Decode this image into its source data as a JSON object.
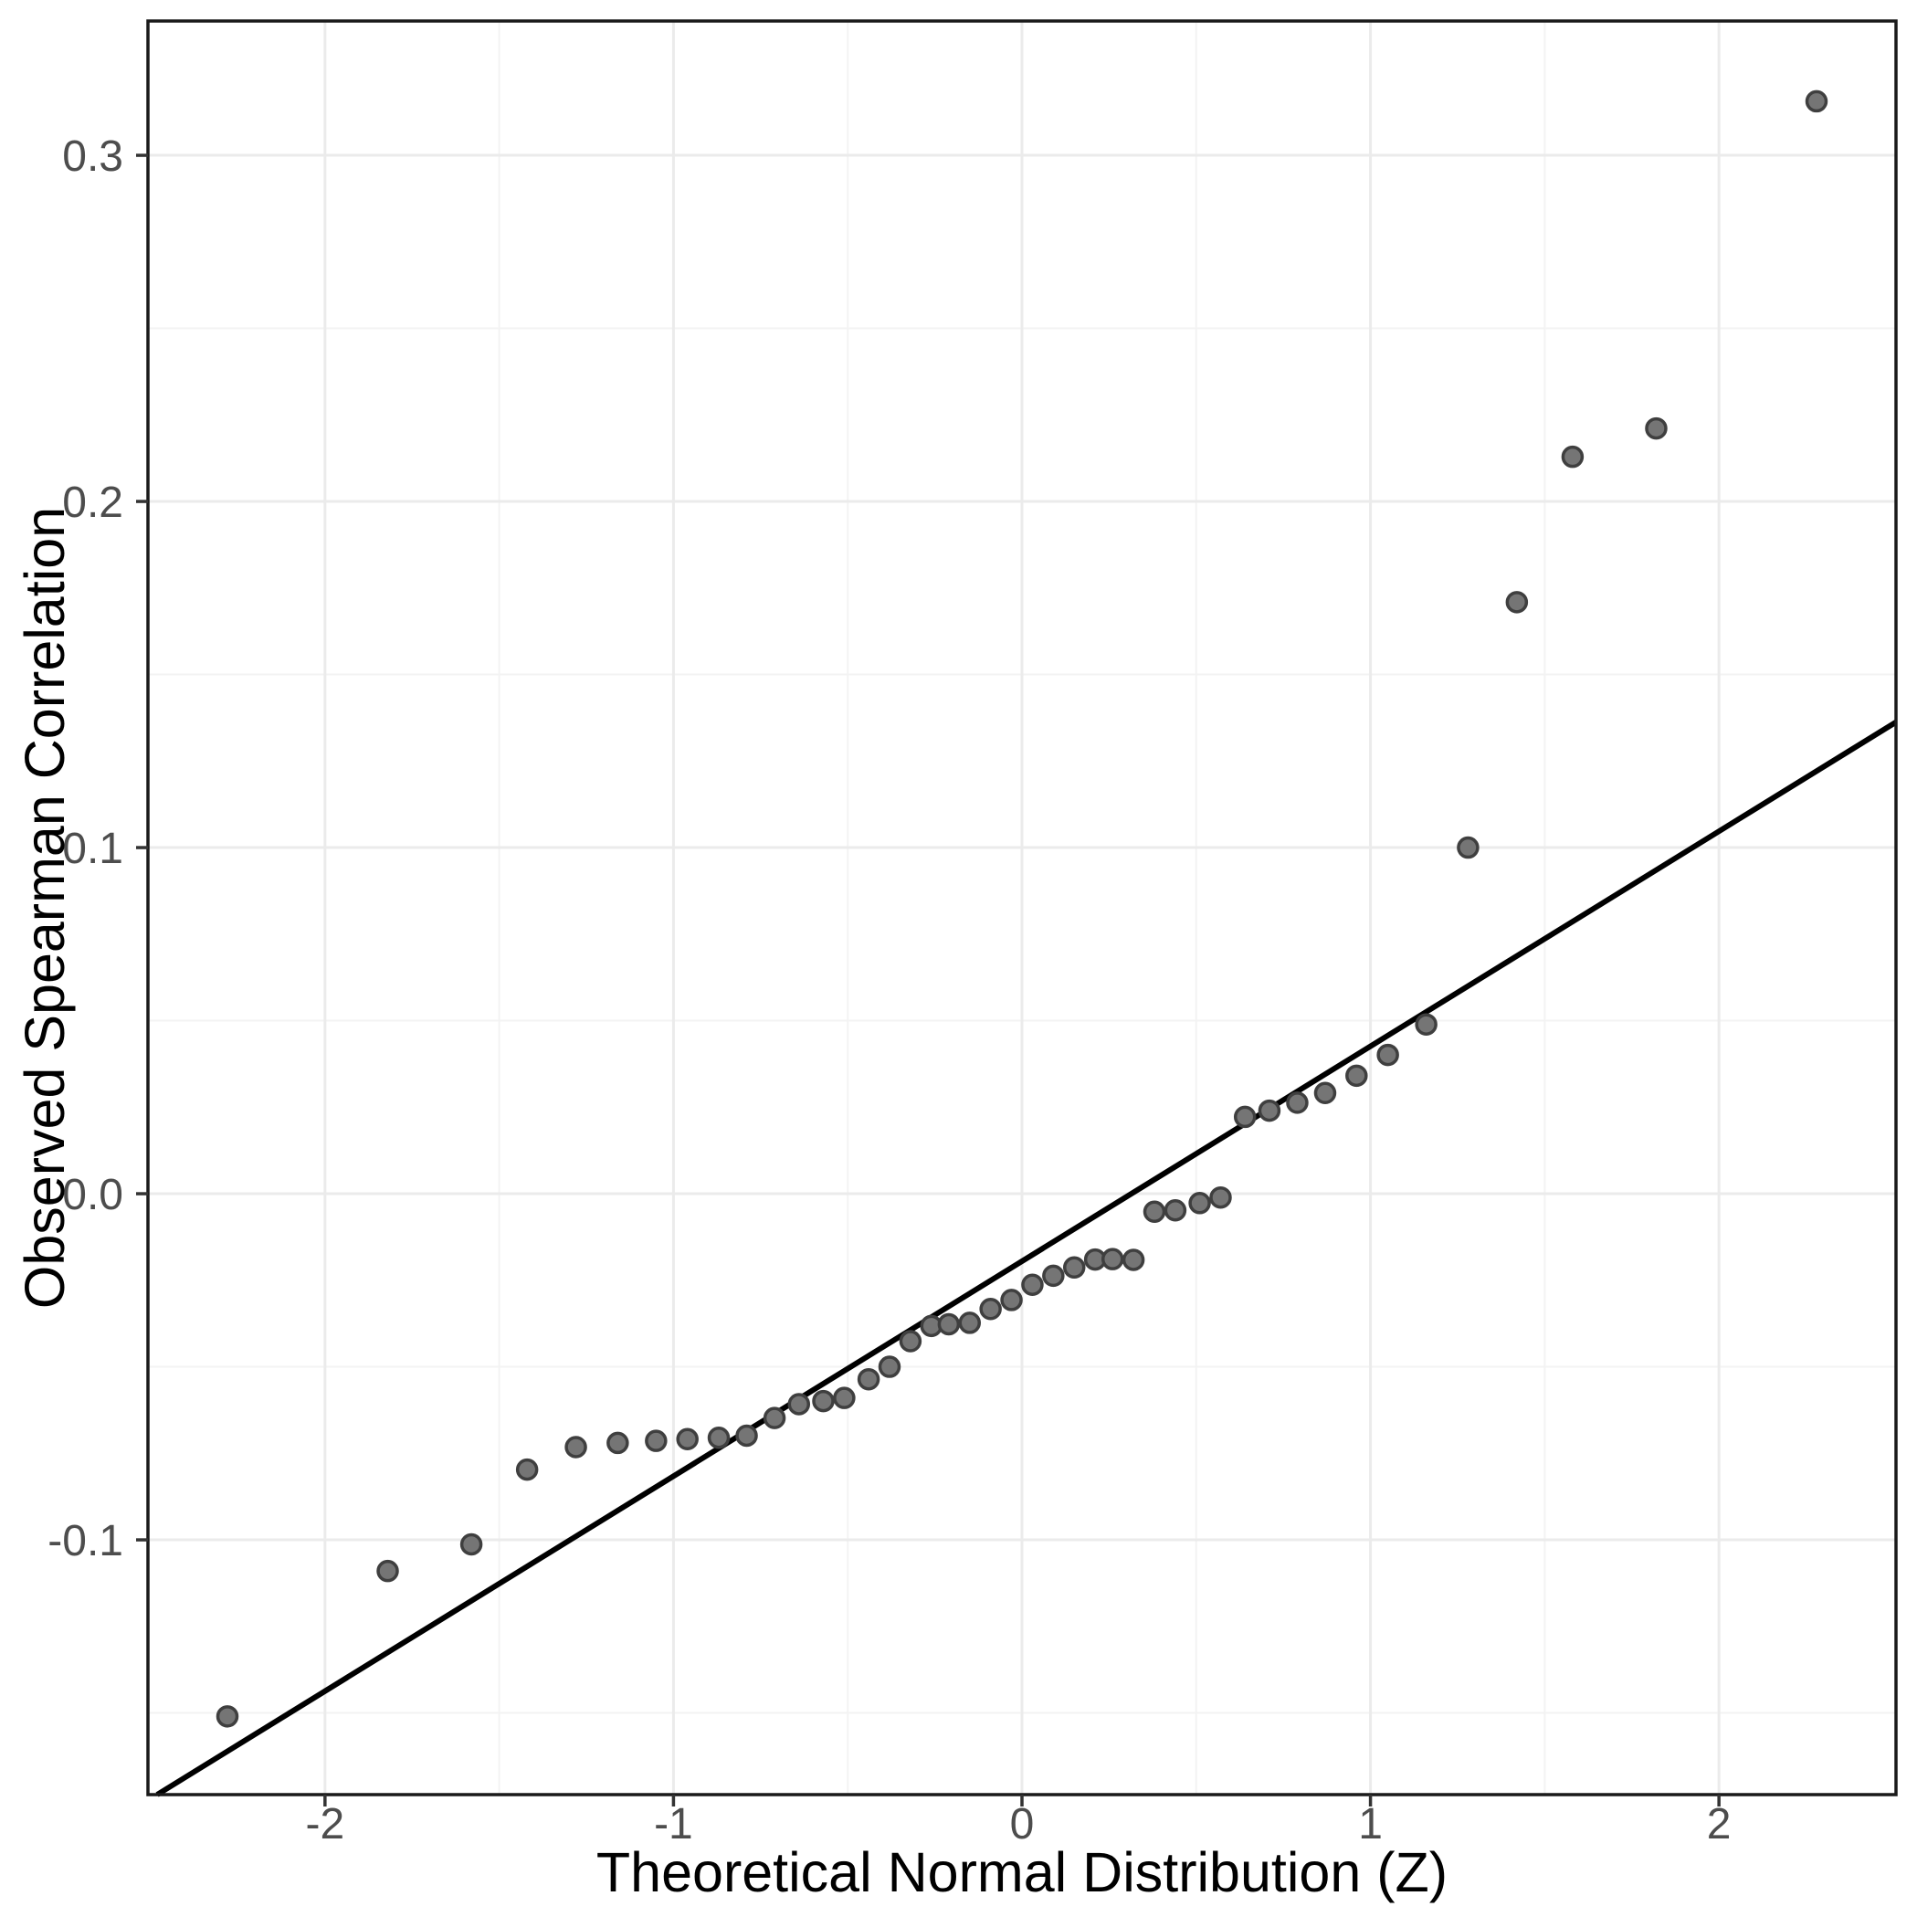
{
  "chart_data": {
    "type": "scatter",
    "title": "",
    "xlabel": "Theoretical Normal Distribution (Z)",
    "ylabel": "Observed Spearman Correlation",
    "xlim": [
      -2.508,
      2.508
    ],
    "ylim": [
      -0.1736,
      0.3388
    ],
    "x_ticks": [
      {
        "value": -2,
        "label": "-2"
      },
      {
        "value": -1,
        "label": "-1"
      },
      {
        "value": 0,
        "label": "0"
      },
      {
        "value": 1,
        "label": "1"
      },
      {
        "value": 2,
        "label": "2"
      }
    ],
    "y_ticks": [
      {
        "value": -0.1,
        "label": "-0.1"
      },
      {
        "value": 0.0,
        "label": "0.0"
      },
      {
        "value": 0.1,
        "label": "0.1"
      },
      {
        "value": 0.2,
        "label": "0.2"
      },
      {
        "value": 0.3,
        "label": "0.3"
      }
    ],
    "x_minor": [
      -1.5,
      -0.5,
      0.5,
      1.5
    ],
    "y_minor": [
      -0.15,
      -0.05,
      0.05,
      0.15,
      0.25
    ],
    "grid": "major and minor gridlines, legend off",
    "legend_position": "none",
    "reference_line": {
      "slope": 0.0621,
      "intercept": -0.0195
    },
    "points": [
      [
        -2.28,
        -0.151
      ],
      [
        -1.82,
        -0.109
      ],
      [
        -1.58,
        -0.1013
      ],
      [
        -1.42,
        -0.0797
      ],
      [
        -1.28,
        -0.0732
      ],
      [
        -1.16,
        -0.072
      ],
      [
        -1.05,
        -0.0714
      ],
      [
        -0.96,
        -0.0709
      ],
      [
        -0.87,
        -0.0705
      ],
      [
        -0.79,
        -0.0699
      ],
      [
        -0.71,
        -0.0648
      ],
      [
        -0.64,
        -0.0608
      ],
      [
        -0.57,
        -0.0599
      ],
      [
        -0.51,
        -0.059
      ],
      [
        -0.44,
        -0.0536
      ],
      [
        -0.38,
        -0.05
      ],
      [
        -0.32,
        -0.0426
      ],
      [
        -0.26,
        -0.0382
      ],
      [
        -0.21,
        -0.0377
      ],
      [
        -0.15,
        -0.0373
      ],
      [
        -0.09,
        -0.0333
      ],
      [
        -0.03,
        -0.0307
      ],
      [
        0.03,
        -0.0263
      ],
      [
        0.09,
        -0.0237
      ],
      [
        0.15,
        -0.0213
      ],
      [
        0.21,
        -0.019
      ],
      [
        0.26,
        -0.0189
      ],
      [
        0.32,
        -0.0191
      ],
      [
        0.38,
        -0.0052
      ],
      [
        0.44,
        -0.0048
      ],
      [
        0.51,
        -0.0027
      ],
      [
        0.57,
        -0.0011
      ],
      [
        0.64,
        0.0222
      ],
      [
        0.71,
        0.024
      ],
      [
        0.79,
        0.0263
      ],
      [
        0.87,
        0.0291
      ],
      [
        0.96,
        0.0341
      ],
      [
        1.05,
        0.0401
      ],
      [
        1.16,
        0.0489
      ],
      [
        1.28,
        0.1
      ],
      [
        1.42,
        0.1709
      ],
      [
        1.58,
        0.2129
      ],
      [
        1.82,
        0.2211
      ],
      [
        2.28,
        0.3156
      ]
    ],
    "colors": {
      "background": "#ffffff",
      "panel_background": "#ffffff",
      "grid_major": "#ebebeb",
      "grid_minor": "#f3f3f3",
      "panel_border": "#1a1a1a",
      "tick_mark": "#333333",
      "tick_label": "#4d4d4d",
      "axis_title": "#000000",
      "point_fill": "#757575",
      "point_stroke": "#3f3f3f",
      "reference_line": "#000000"
    }
  }
}
